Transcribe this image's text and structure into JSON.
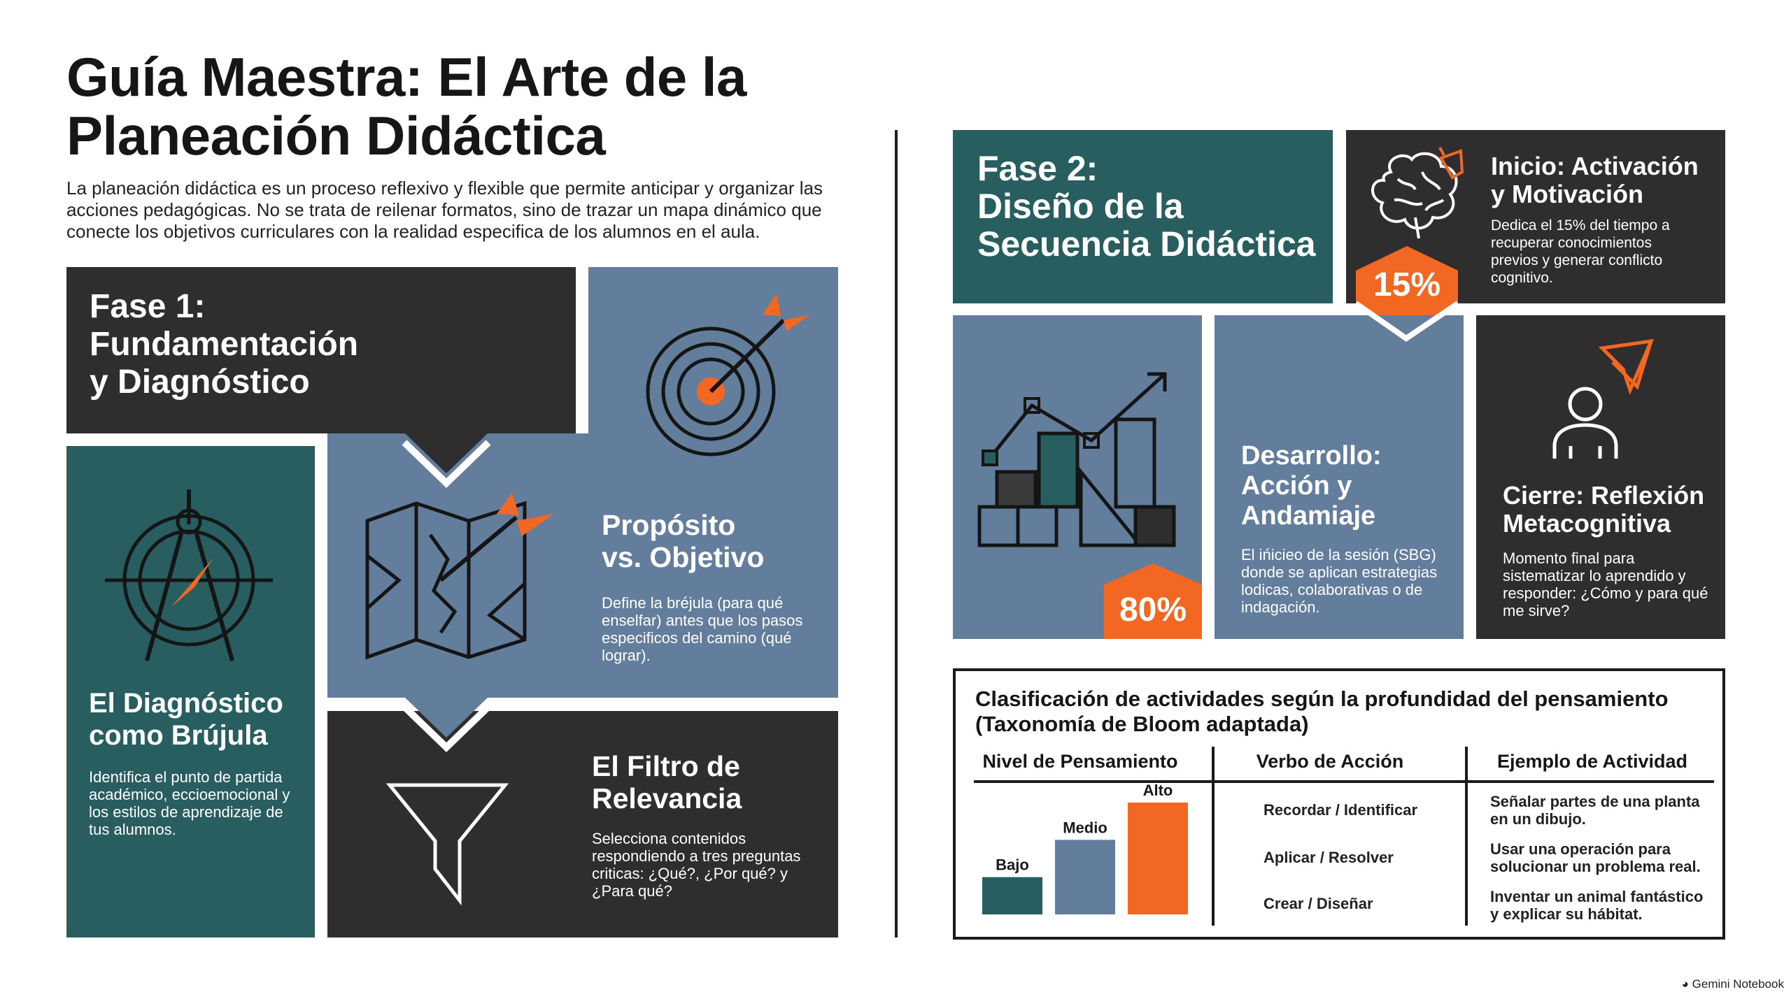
{
  "title_line1": "Guía Maestra: El Arte de la",
  "title_line2": "Planeación Didáctica",
  "intro": "La planeación didáctica es un proceso reflexivo y flexible que permite anticipar y organizar las acciones pedagógicas. No se trata de reilenar formatos, sino de trazar un mapa dinámico que conecte los objetivos curriculares con la realidad especifica de los alumnos en el aula.",
  "phase1": {
    "title_l1": "Fase 1:",
    "title_l2": "Fundamentación",
    "title_l3": "y Diagnóstico"
  },
  "diagnostico": {
    "title_l1": "El Diagnóstico",
    "title_l2": "como Brújula",
    "text": "Identifica el punto de partida académico, eccioemocional y los estilos de aprendizaje de tus alumnos."
  },
  "proposito": {
    "title_l1": "Propósito",
    "title_l2": "vs. Objetivo",
    "text": "Define la bréjula (para qué enselfar) antes que los pasos especificos del camino (qué lograr)."
  },
  "filtro": {
    "title_l1": "El Filtro de",
    "title_l2": "Relevancia",
    "text": "Selecciona contenidos respondiendo a tres preguntas criticas: ¿Qué?, ¿Por qué? y ¿Para qué?"
  },
  "phase2": {
    "title_l1": "Fase 2:",
    "title_l2": "Diseño de la",
    "title_l3": "Secuencia Didáctica"
  },
  "inicio": {
    "title_l1": "Inicio: Activación",
    "title_l2": "y Motivación",
    "text": "Dedica el 15% del tiempo a recuperar conocimientos previos y generar conflicto cognitivo.",
    "badge": "15%",
    "badge_value": 15
  },
  "desarrollo": {
    "title_l1": "Desarrollo:",
    "title_l2": "Acción y",
    "title_l3": "Andamiaje",
    "text": "El ińicieo de la sesión (SBG) donde se aplican estrategias lodicas, colaborativas o de indagación.",
    "badge": "80%",
    "badge_value": 80
  },
  "cierre": {
    "title_l1": "Cierre: Reflexión",
    "title_l2": "Metacognitiva",
    "text": "Momento final para sistematizar lo aprendido y responder: ¿Cómo y para qué me sirve?"
  },
  "table": {
    "title_l1": "Clasificación de actividades según la profundidad del pensamiento",
    "title_l2": "(Taxonomía de Bloom adaptada)",
    "headers": [
      "Nivel de Pensamiento",
      "Verbo de Acción",
      "Ejemplo de Actividad"
    ],
    "rows": [
      {
        "level": "Bajo",
        "verb": "Recordar / Identificar",
        "example_l1": "Señalar partes de una planta",
        "example_l2": "en un dibujo."
      },
      {
        "level": "Medio",
        "verb": "Aplicar / Resolver",
        "example_l1": "Usar una operación para",
        "example_l2": "solucionar un problema real."
      },
      {
        "level": "Alto",
        "verb": "Crear / Diseñar",
        "example_l1": "Inventar un animal fantástico",
        "example_l2": "y explicar su hábitat."
      }
    ]
  },
  "chart_data": {
    "type": "bar",
    "categories": [
      "Bajo",
      "Medio",
      "Alto"
    ],
    "values": [
      1,
      2,
      3
    ],
    "colors": [
      "#285e60",
      "#637d9d",
      "#f26722"
    ],
    "ylim": [
      0,
      3
    ]
  },
  "footer": "Gemini Notebook",
  "colors": {
    "dark": "#2f2d2d",
    "teal": "#285e60",
    "blue": "#637d9d",
    "accent": "#f26722"
  }
}
